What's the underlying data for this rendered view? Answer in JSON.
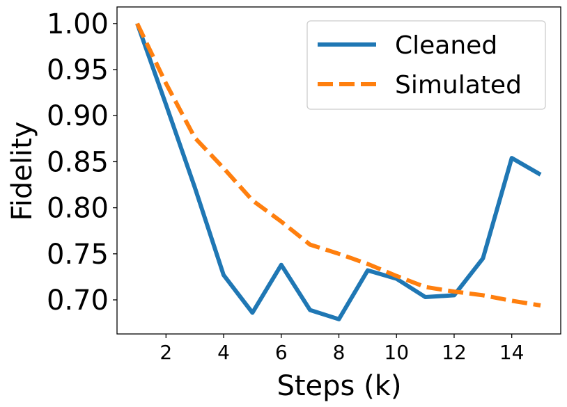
{
  "chart_data": {
    "type": "line",
    "xlabel": "Steps (k)",
    "ylabel": "Fidelity",
    "xlim": [
      0.3,
      15.7
    ],
    "ylim": [
      0.663,
      1.018
    ],
    "xticks": [
      2,
      4,
      6,
      8,
      10,
      12,
      14
    ],
    "yticks": [
      "0.70",
      "0.75",
      "0.80",
      "0.85",
      "0.90",
      "0.95",
      "1.00"
    ],
    "grid": false,
    "legend_position": "top-right",
    "x": [
      1,
      2,
      3,
      4,
      5,
      6,
      7,
      8,
      9,
      10,
      11,
      12,
      13,
      14,
      15
    ],
    "series": [
      {
        "name": "Cleaned",
        "color": "#1f77b4",
        "style": "solid",
        "values": [
          1.0,
          0.912,
          0.822,
          0.727,
          0.686,
          0.738,
          0.689,
          0.679,
          0.732,
          0.723,
          0.703,
          0.705,
          0.745,
          0.854,
          0.836
        ]
      },
      {
        "name": "Simulated",
        "color": "#ff7f0e",
        "style": "dashed",
        "values": [
          1.0,
          0.935,
          0.876,
          0.843,
          0.808,
          0.785,
          0.76,
          0.75,
          0.739,
          0.726,
          0.714,
          0.709,
          0.705,
          0.699,
          0.694
        ]
      }
    ]
  }
}
